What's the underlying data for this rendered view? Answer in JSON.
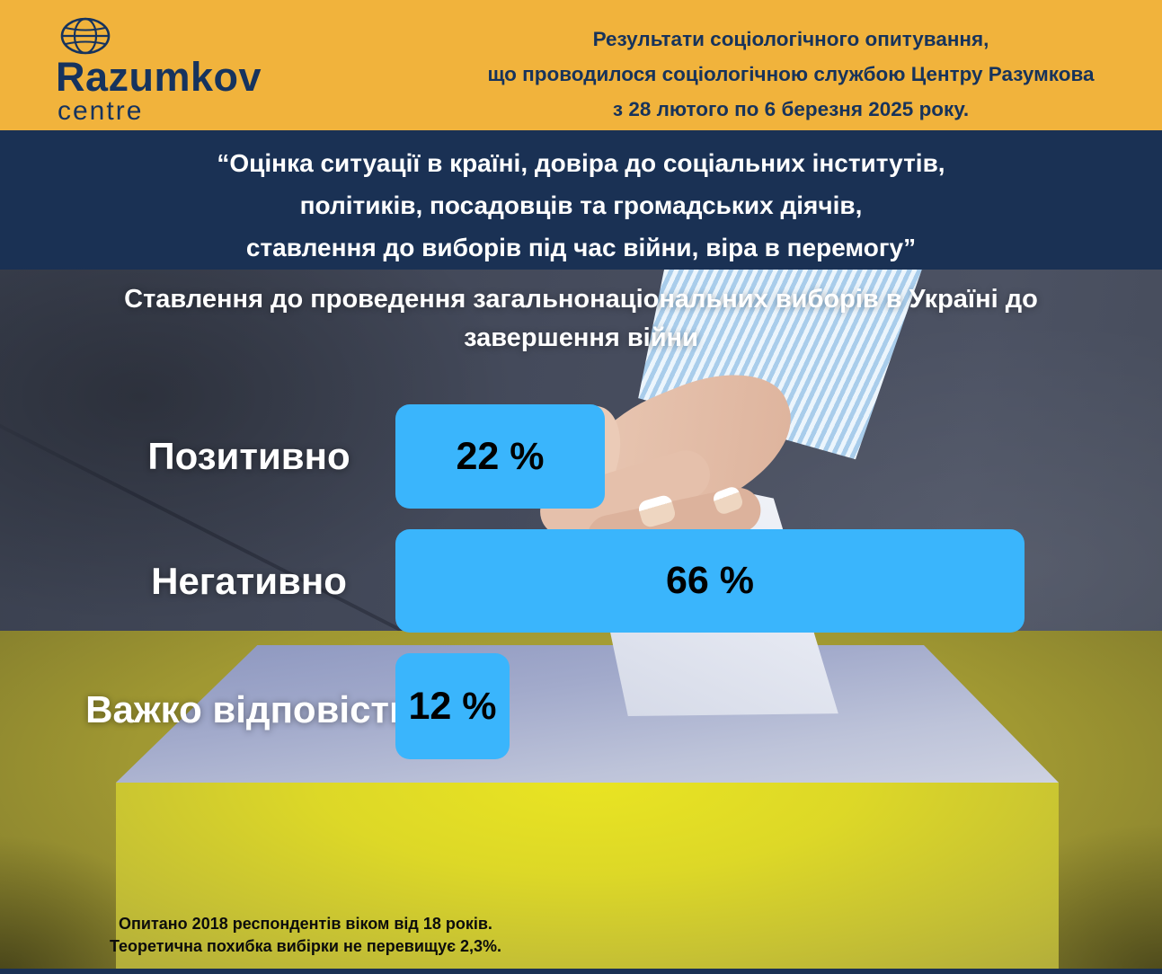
{
  "header": {
    "logo": {
      "name": "Razumkov",
      "sub": "centre"
    },
    "intro_lines": [
      "Результати соціологічного опитування,",
      "що проводилося соціологічною службою Центру Разумкова",
      "з 28 лютого по 6 березня 2025 року."
    ]
  },
  "banner": {
    "lines": [
      "“Оцінка ситуації в країні, довіра до соціальних інститутів,",
      "політиків, посадовців та громадських діячів,",
      "ставлення до виборів під час війни, віра в перемогу”"
    ]
  },
  "main": {
    "title_lines": [
      "Ставлення до проведення загальнонаціональних виборів в Україні до",
      "завершення війни"
    ],
    "bars": [
      {
        "label": "Позитивно",
        "value_label": "22 %"
      },
      {
        "label": "Негативно",
        "value_label": "66 %"
      },
      {
        "label": "Важко відповісти",
        "value_label": "12 %"
      }
    ],
    "footnote_lines": [
      "Опитано 2018 респондентів віком від 18 років.",
      "Теоретична похибка вибірки не перевищує 2,3%."
    ]
  },
  "chart_data": {
    "type": "bar",
    "orientation": "horizontal",
    "title": "Ставлення до проведення загальнонаціональних виборів в Україні до завершення війни",
    "categories": [
      "Позитивно",
      "Негативно",
      "Важко відповісти"
    ],
    "values": [
      22,
      66,
      12
    ],
    "unit": "%",
    "xlim": [
      0,
      100
    ],
    "legend": "none",
    "grid": false,
    "bar_color": "#3AB5FC",
    "value_label_color": "#000000",
    "category_label_color": "#FFFFFF"
  },
  "colors": {
    "header_yellow": "#F1B33C",
    "brand_navy": "#1A3154",
    "bar_blue": "#3AB5FC",
    "ballot_box_front": "#E6E126",
    "ballot_box_top": "#AEB5D2",
    "background_olive": "#A09832",
    "background_fabric": "#454B5C"
  }
}
